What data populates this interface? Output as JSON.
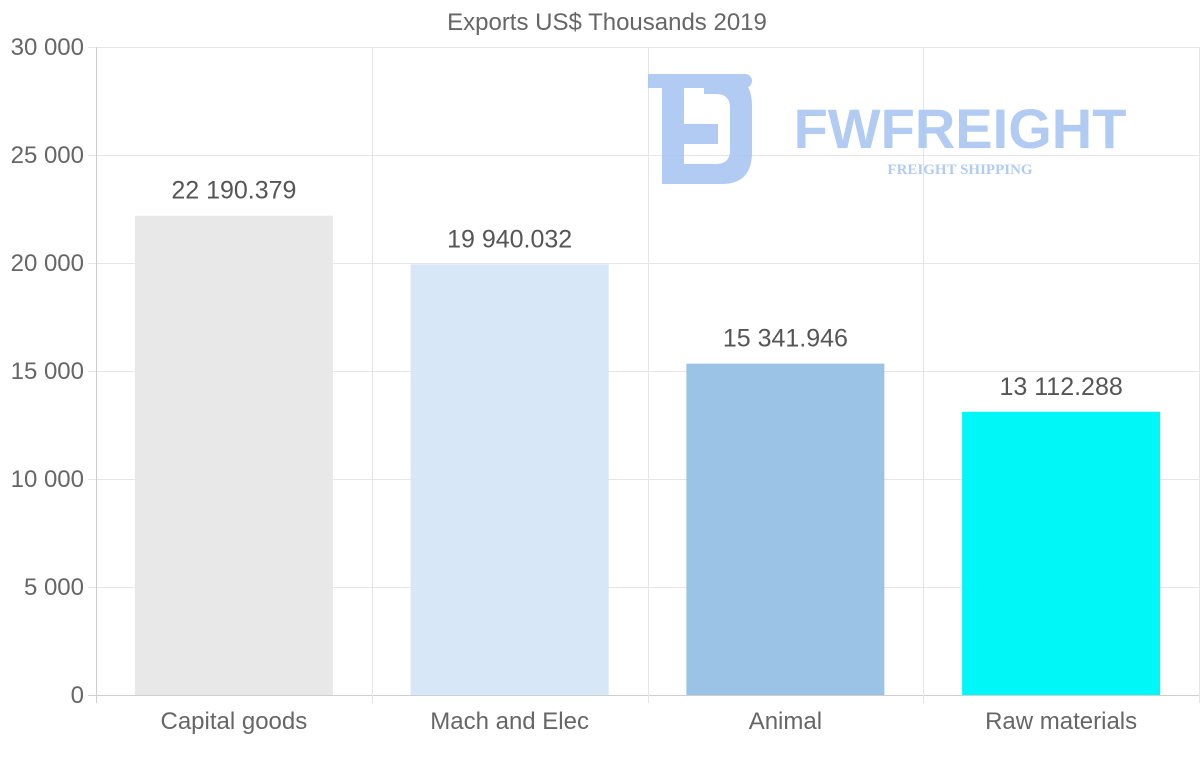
{
  "chart_data": {
    "type": "bar",
    "title": "Exports US$ Thousands 2019",
    "categories": [
      "Capital goods",
      "Mach and Elec",
      "Animal",
      "Raw materials"
    ],
    "values": [
      22190.379,
      19940.032,
      15341.946,
      13112.288
    ],
    "value_labels": [
      "22 190.379",
      "19 940.032",
      "15 341.946",
      "13 112.288"
    ],
    "bar_colors": [
      "#e8e8e8",
      "#d8e7f8",
      "#9ac3e6",
      "#00f7f7"
    ],
    "xlabel": "",
    "ylabel": "",
    "ylim": [
      0,
      30000
    ],
    "yticks": [
      0,
      5000,
      10000,
      15000,
      20000,
      25000,
      30000
    ],
    "ytick_labels": [
      "0",
      "5 000",
      "10 000",
      "15 000",
      "20 000",
      "25 000",
      "30 000"
    ],
    "grid": true
  },
  "watermark": {
    "brand": "FWFREIGHT",
    "tagline": "FREIGHT SHIPPING",
    "color": "#a9c6f2"
  }
}
